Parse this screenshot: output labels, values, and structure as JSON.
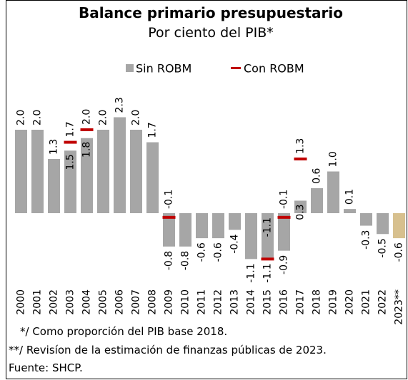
{
  "chart_data": {
    "type": "bar",
    "title": "Balance primario presupuestario",
    "subtitle": "Por ciento del PIB*",
    "categories": [
      "2000",
      "2001",
      "2002",
      "2003",
      "2004",
      "2005",
      "2006",
      "2007",
      "2008",
      "2009",
      "2010",
      "2011",
      "2012",
      "2013",
      "2014",
      "2015",
      "2016",
      "2017",
      "2018",
      "2019",
      "2020",
      "2021",
      "2022",
      "2023**"
    ],
    "series": [
      {
        "name": "Sin ROBM",
        "color": "#a6a6a6",
        "colors": [
          "#a6a6a6",
          "#a6a6a6",
          "#a6a6a6",
          "#a6a6a6",
          "#a6a6a6",
          "#a6a6a6",
          "#a6a6a6",
          "#a6a6a6",
          "#a6a6a6",
          "#a6a6a6",
          "#a6a6a6",
          "#a6a6a6",
          "#a6a6a6",
          "#a6a6a6",
          "#a6a6a6",
          "#a6a6a6",
          "#a6a6a6",
          "#a6a6a6",
          "#a6a6a6",
          "#a6a6a6",
          "#a6a6a6",
          "#a6a6a6",
          "#a6a6a6",
          "#d7c08e"
        ],
        "values": [
          2,
          2,
          1.3,
          1.5,
          1.8,
          2,
          2.3,
          2,
          1.7,
          -0.8,
          -0.8,
          -0.6,
          -0.6,
          -0.4,
          -1.1,
          -1.1,
          -0.9,
          0.3,
          0.6,
          1,
          0.1,
          -0.3,
          -0.5,
          -0.6
        ],
        "value_labels": [
          "2.0",
          "2.0",
          "1.3",
          "1.5",
          "1.8",
          "2.0",
          "2.3",
          "2.0",
          "1.7",
          "-0.8",
          "-0.8",
          "-0.6",
          "-0.6",
          "-0.4",
          "-1.1",
          "-1.1",
          "-0.9",
          "0.3",
          "0.6",
          "1.0",
          "0.1",
          "-0.3",
          "-0.5",
          "-0.6"
        ]
      },
      {
        "name": "Con ROBM",
        "color": "#c00000",
        "values": [
          null,
          null,
          null,
          1.7,
          2,
          null,
          null,
          null,
          null,
          -0.1,
          null,
          null,
          null,
          null,
          null,
          -1.1,
          -0.1,
          1.3,
          null,
          null,
          null,
          null,
          null,
          null
        ],
        "value_labels": [
          null,
          null,
          null,
          "1.7",
          "2.0",
          null,
          null,
          null,
          null,
          "-0.1",
          null,
          null,
          null,
          null,
          null,
          "-1.1",
          "-0.1",
          "1.3",
          null,
          null,
          null,
          null,
          null,
          null
        ]
      }
    ],
    "notes": [
      "*/ Como proporción del PIB base 2018.",
      "**/ Revisíon de la estimación de finanzas públicas de 2023.",
      "Fuente: SHCP."
    ]
  }
}
